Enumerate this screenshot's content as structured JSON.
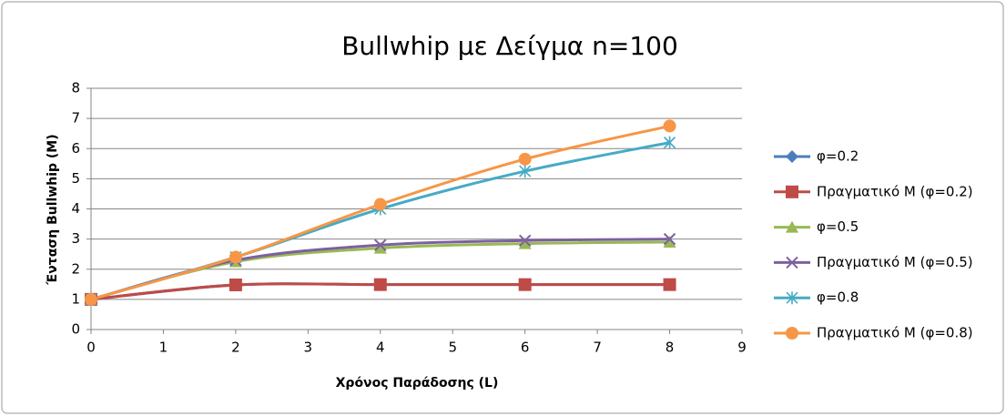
{
  "chart_data": {
    "type": "line",
    "title": "Bullwhip με Δείγμα n=100",
    "x_label": "Χρόνος Παράδοσης (L)",
    "y_label": "Ένταση Bullwhip (M)",
    "x": [
      0,
      2,
      4,
      6,
      8
    ],
    "xlim": [
      0,
      9
    ],
    "xticks": [
      0,
      1,
      2,
      3,
      4,
      5,
      6,
      7,
      8,
      9
    ],
    "ylim": [
      0,
      8
    ],
    "yticks": [
      0,
      1,
      2,
      3,
      4,
      5,
      6,
      7,
      8
    ],
    "grid": true,
    "smooth": true,
    "legend": "right",
    "series": [
      {
        "name": "φ=0.2",
        "color": "#4a7ebb",
        "marker": "diamond",
        "values": [
          1,
          1.48,
          1.49,
          1.49,
          1.49
        ]
      },
      {
        "name": "Πραγματικό Μ (φ=0.2)",
        "color": "#be4b48",
        "marker": "square",
        "values": [
          1,
          1.48,
          1.49,
          1.49,
          1.49
        ]
      },
      {
        "name": "φ=0.5",
        "color": "#98b954",
        "marker": "triangle",
        "values": [
          1,
          2.25,
          2.7,
          2.85,
          2.9
        ]
      },
      {
        "name": "Πραγματικό Μ (φ=0.5)",
        "color": "#7d60a0",
        "marker": "x",
        "values": [
          1,
          2.3,
          2.8,
          2.95,
          3.0
        ]
      },
      {
        "name": "φ=0.8",
        "color": "#46aac5",
        "marker": "star",
        "values": [
          1,
          2.4,
          4.0,
          5.25,
          6.2
        ]
      },
      {
        "name": "Πραγματικό Μ (φ=0.8)",
        "color": "#f79646",
        "marker": "circle",
        "values": [
          1,
          2.4,
          4.15,
          5.65,
          6.75
        ]
      }
    ]
  }
}
